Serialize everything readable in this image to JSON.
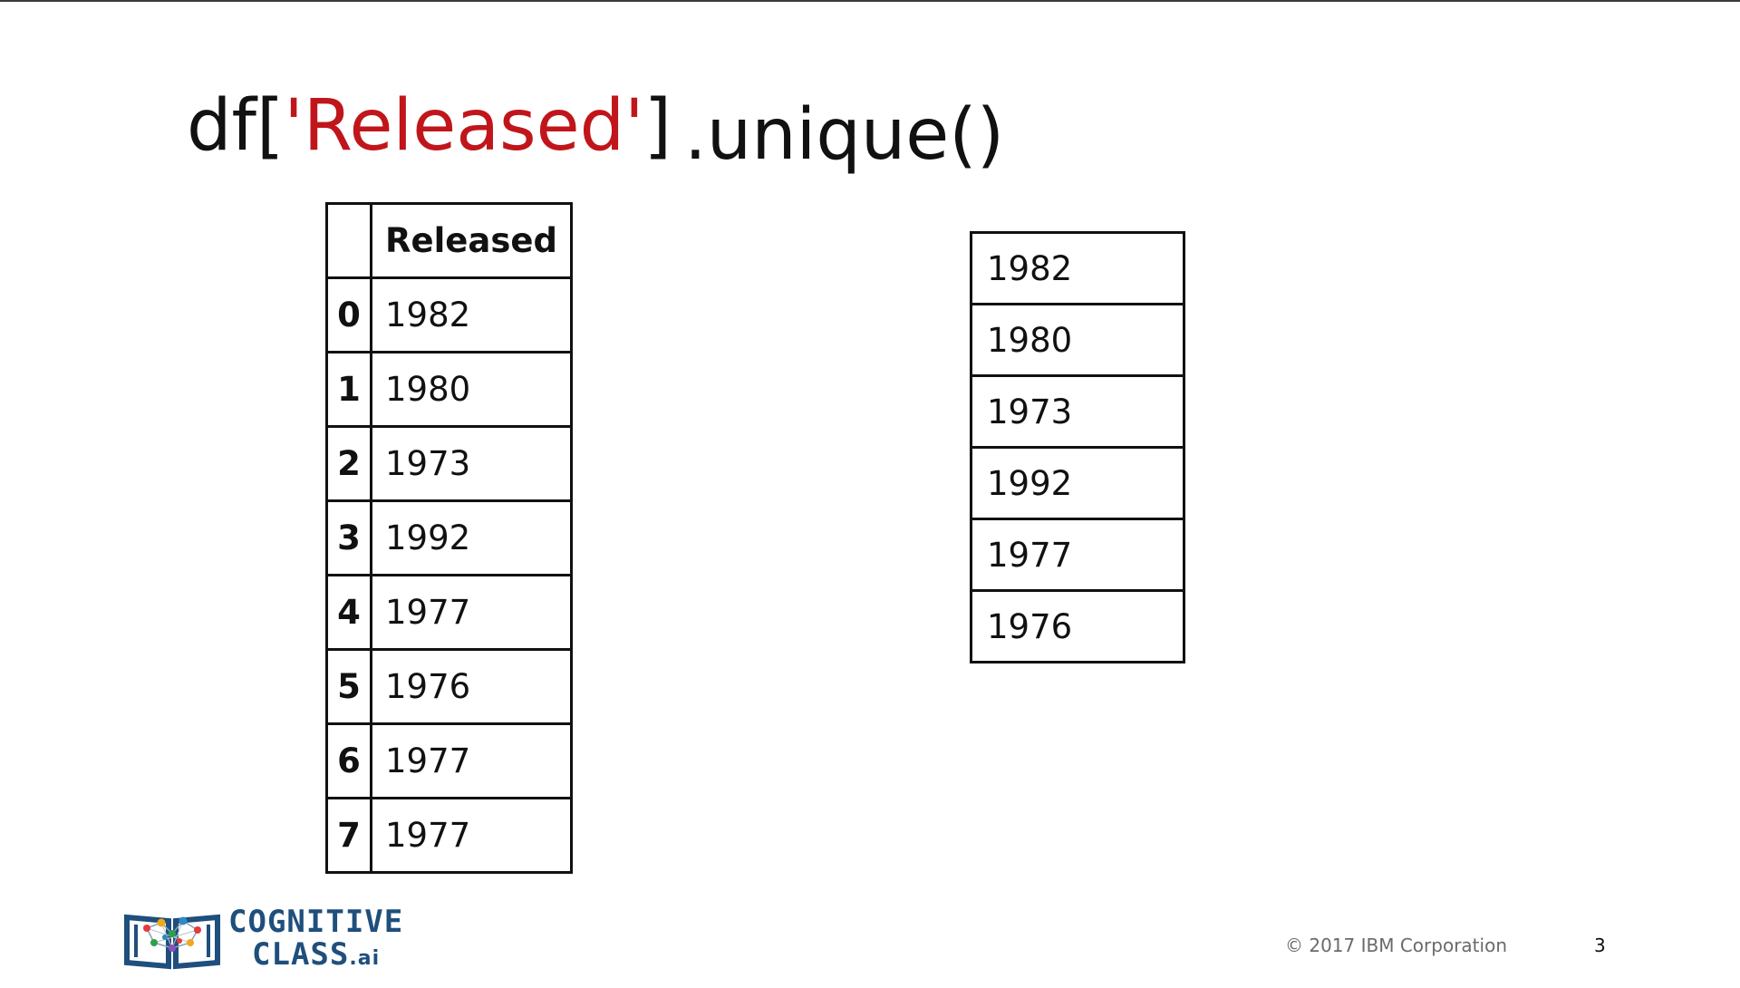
{
  "title": {
    "prefix": "df[",
    "column_literal": "'Released'",
    "suffix": "]",
    "method": ".unique()",
    "literal_color": "#c0161b"
  },
  "dataframe": {
    "column_header": "Released",
    "index_header": "",
    "rows": [
      {
        "index": "0",
        "value": "1982"
      },
      {
        "index": "1",
        "value": "1980"
      },
      {
        "index": "2",
        "value": "1973"
      },
      {
        "index": "3",
        "value": "1992"
      },
      {
        "index": "4",
        "value": "1977"
      },
      {
        "index": "5",
        "value": "1976"
      },
      {
        "index": "6",
        "value": "1977"
      },
      {
        "index": "7",
        "value": "1977"
      }
    ]
  },
  "unique_values": [
    "1982",
    "1980",
    "1973",
    "1992",
    "1977",
    "1976"
  ],
  "footer": {
    "logo": {
      "line1": "COGNITIVE",
      "line2": "CLASS",
      "suffix": ".ai",
      "icon": "open-book-network-icon",
      "color": "#1f4f7c"
    },
    "copyright": "© 2017 IBM Corporation",
    "page_number": "3"
  }
}
